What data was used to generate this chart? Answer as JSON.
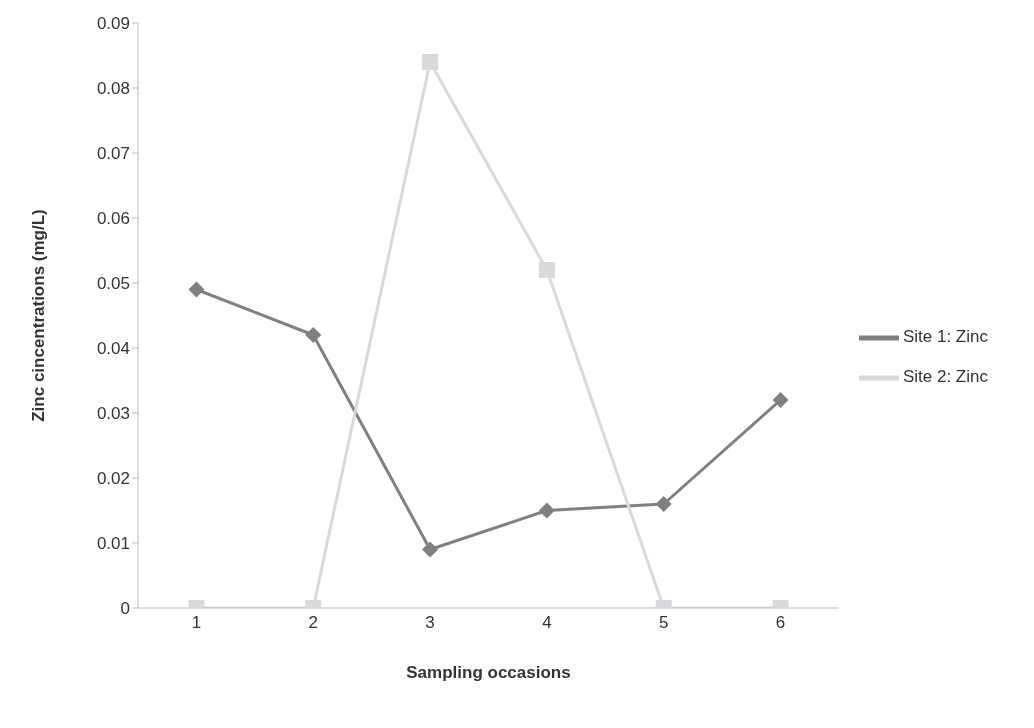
{
  "chart_data": {
    "type": "line",
    "xlabel": "Sampling occasions",
    "ylabel": "Zinc cincentrations (mg/L)",
    "categories": [
      "1",
      "2",
      "3",
      "4",
      "5",
      "6"
    ],
    "series": [
      {
        "name": "Site 1: Zinc",
        "color": "#808080",
        "marker": "diamond",
        "values": [
          0.049,
          0.042,
          0.009,
          0.015,
          0.016,
          0.032
        ]
      },
      {
        "name": "Site 2: Zinc",
        "color": "#d9d9dd",
        "marker": "square",
        "values": [
          0,
          0,
          0.084,
          0.052,
          0,
          0
        ]
      }
    ],
    "ylim": [
      0,
      0.09
    ],
    "yticks": [
      0,
      0.01,
      0.02,
      0.03,
      0.04,
      0.05,
      0.06,
      0.07,
      0.08,
      0.09
    ],
    "grid": false,
    "legend": "right"
  }
}
